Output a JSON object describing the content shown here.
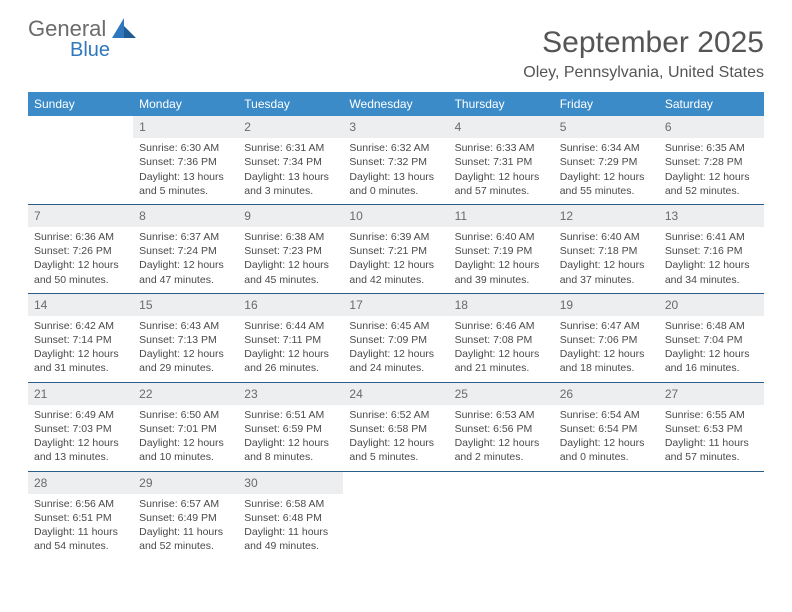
{
  "brand": {
    "name1": "General",
    "name2": "Blue",
    "accent": "#2f78bd"
  },
  "title": "September 2025",
  "location": "Oley, Pennsylvania, United States",
  "header_bg": "#3b8bc8",
  "daynum_bg": "#eceef0",
  "week_border": "#2b5d8a",
  "weekdays": [
    "Sunday",
    "Monday",
    "Tuesday",
    "Wednesday",
    "Thursday",
    "Friday",
    "Saturday"
  ],
  "days": [
    {
      "n": "",
      "sunrise": "",
      "sunset": "",
      "daylight": ""
    },
    {
      "n": "1",
      "sunrise": "Sunrise: 6:30 AM",
      "sunset": "Sunset: 7:36 PM",
      "daylight": "Daylight: 13 hours and 5 minutes."
    },
    {
      "n": "2",
      "sunrise": "Sunrise: 6:31 AM",
      "sunset": "Sunset: 7:34 PM",
      "daylight": "Daylight: 13 hours and 3 minutes."
    },
    {
      "n": "3",
      "sunrise": "Sunrise: 6:32 AM",
      "sunset": "Sunset: 7:32 PM",
      "daylight": "Daylight: 13 hours and 0 minutes."
    },
    {
      "n": "4",
      "sunrise": "Sunrise: 6:33 AM",
      "sunset": "Sunset: 7:31 PM",
      "daylight": "Daylight: 12 hours and 57 minutes."
    },
    {
      "n": "5",
      "sunrise": "Sunrise: 6:34 AM",
      "sunset": "Sunset: 7:29 PM",
      "daylight": "Daylight: 12 hours and 55 minutes."
    },
    {
      "n": "6",
      "sunrise": "Sunrise: 6:35 AM",
      "sunset": "Sunset: 7:28 PM",
      "daylight": "Daylight: 12 hours and 52 minutes."
    },
    {
      "n": "7",
      "sunrise": "Sunrise: 6:36 AM",
      "sunset": "Sunset: 7:26 PM",
      "daylight": "Daylight: 12 hours and 50 minutes."
    },
    {
      "n": "8",
      "sunrise": "Sunrise: 6:37 AM",
      "sunset": "Sunset: 7:24 PM",
      "daylight": "Daylight: 12 hours and 47 minutes."
    },
    {
      "n": "9",
      "sunrise": "Sunrise: 6:38 AM",
      "sunset": "Sunset: 7:23 PM",
      "daylight": "Daylight: 12 hours and 45 minutes."
    },
    {
      "n": "10",
      "sunrise": "Sunrise: 6:39 AM",
      "sunset": "Sunset: 7:21 PM",
      "daylight": "Daylight: 12 hours and 42 minutes."
    },
    {
      "n": "11",
      "sunrise": "Sunrise: 6:40 AM",
      "sunset": "Sunset: 7:19 PM",
      "daylight": "Daylight: 12 hours and 39 minutes."
    },
    {
      "n": "12",
      "sunrise": "Sunrise: 6:40 AM",
      "sunset": "Sunset: 7:18 PM",
      "daylight": "Daylight: 12 hours and 37 minutes."
    },
    {
      "n": "13",
      "sunrise": "Sunrise: 6:41 AM",
      "sunset": "Sunset: 7:16 PM",
      "daylight": "Daylight: 12 hours and 34 minutes."
    },
    {
      "n": "14",
      "sunrise": "Sunrise: 6:42 AM",
      "sunset": "Sunset: 7:14 PM",
      "daylight": "Daylight: 12 hours and 31 minutes."
    },
    {
      "n": "15",
      "sunrise": "Sunrise: 6:43 AM",
      "sunset": "Sunset: 7:13 PM",
      "daylight": "Daylight: 12 hours and 29 minutes."
    },
    {
      "n": "16",
      "sunrise": "Sunrise: 6:44 AM",
      "sunset": "Sunset: 7:11 PM",
      "daylight": "Daylight: 12 hours and 26 minutes."
    },
    {
      "n": "17",
      "sunrise": "Sunrise: 6:45 AM",
      "sunset": "Sunset: 7:09 PM",
      "daylight": "Daylight: 12 hours and 24 minutes."
    },
    {
      "n": "18",
      "sunrise": "Sunrise: 6:46 AM",
      "sunset": "Sunset: 7:08 PM",
      "daylight": "Daylight: 12 hours and 21 minutes."
    },
    {
      "n": "19",
      "sunrise": "Sunrise: 6:47 AM",
      "sunset": "Sunset: 7:06 PM",
      "daylight": "Daylight: 12 hours and 18 minutes."
    },
    {
      "n": "20",
      "sunrise": "Sunrise: 6:48 AM",
      "sunset": "Sunset: 7:04 PM",
      "daylight": "Daylight: 12 hours and 16 minutes."
    },
    {
      "n": "21",
      "sunrise": "Sunrise: 6:49 AM",
      "sunset": "Sunset: 7:03 PM",
      "daylight": "Daylight: 12 hours and 13 minutes."
    },
    {
      "n": "22",
      "sunrise": "Sunrise: 6:50 AM",
      "sunset": "Sunset: 7:01 PM",
      "daylight": "Daylight: 12 hours and 10 minutes."
    },
    {
      "n": "23",
      "sunrise": "Sunrise: 6:51 AM",
      "sunset": "Sunset: 6:59 PM",
      "daylight": "Daylight: 12 hours and 8 minutes."
    },
    {
      "n": "24",
      "sunrise": "Sunrise: 6:52 AM",
      "sunset": "Sunset: 6:58 PM",
      "daylight": "Daylight: 12 hours and 5 minutes."
    },
    {
      "n": "25",
      "sunrise": "Sunrise: 6:53 AM",
      "sunset": "Sunset: 6:56 PM",
      "daylight": "Daylight: 12 hours and 2 minutes."
    },
    {
      "n": "26",
      "sunrise": "Sunrise: 6:54 AM",
      "sunset": "Sunset: 6:54 PM",
      "daylight": "Daylight: 12 hours and 0 minutes."
    },
    {
      "n": "27",
      "sunrise": "Sunrise: 6:55 AM",
      "sunset": "Sunset: 6:53 PM",
      "daylight": "Daylight: 11 hours and 57 minutes."
    },
    {
      "n": "28",
      "sunrise": "Sunrise: 6:56 AM",
      "sunset": "Sunset: 6:51 PM",
      "daylight": "Daylight: 11 hours and 54 minutes."
    },
    {
      "n": "29",
      "sunrise": "Sunrise: 6:57 AM",
      "sunset": "Sunset: 6:49 PM",
      "daylight": "Daylight: 11 hours and 52 minutes."
    },
    {
      "n": "30",
      "sunrise": "Sunrise: 6:58 AM",
      "sunset": "Sunset: 6:48 PM",
      "daylight": "Daylight: 11 hours and 49 minutes."
    },
    {
      "n": "",
      "sunrise": "",
      "sunset": "",
      "daylight": ""
    },
    {
      "n": "",
      "sunrise": "",
      "sunset": "",
      "daylight": ""
    },
    {
      "n": "",
      "sunrise": "",
      "sunset": "",
      "daylight": ""
    },
    {
      "n": "",
      "sunrise": "",
      "sunset": "",
      "daylight": ""
    }
  ]
}
